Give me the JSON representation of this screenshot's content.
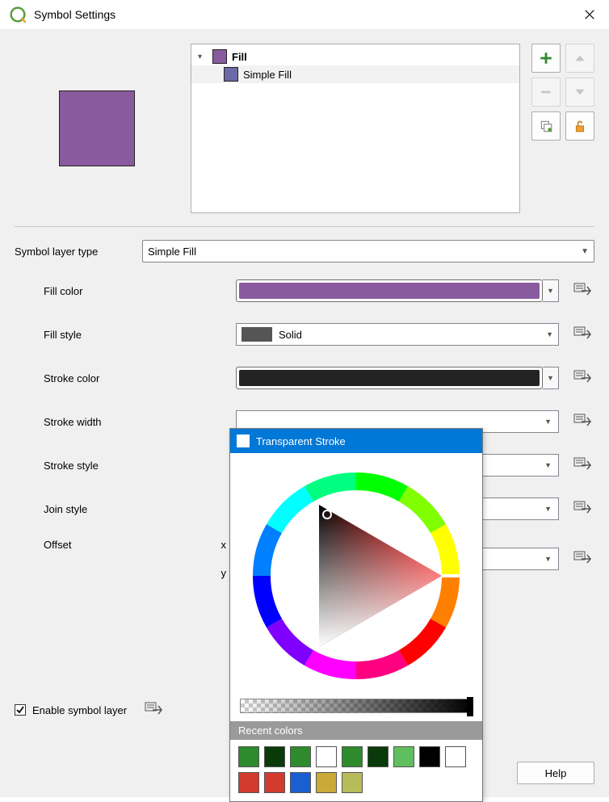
{
  "window": {
    "title": "Symbol Settings",
    "background": "#f0f0f0"
  },
  "preview": {
    "fill_color": "#8a5a9e",
    "stroke_color": "#232323"
  },
  "layer_tree": {
    "root_label": "Fill",
    "root_swatch": "#8a5a9e",
    "child_label": "Simple Fill",
    "child_swatch": "#6a6aa8"
  },
  "form": {
    "symbol_layer_type_label": "Symbol layer type",
    "symbol_layer_type_value": "Simple Fill",
    "fill_color_label": "Fill color",
    "fill_color_value": "#8a5a9e",
    "fill_style_label": "Fill style",
    "fill_style_value": "Solid",
    "fill_style_swatch": "#555555",
    "stroke_color_label": "Stroke color",
    "stroke_color_value": "#232323",
    "stroke_width_label": "Stroke width",
    "stroke_style_label": "Stroke style",
    "join_style_label": "Join style",
    "offset_label": "Offset",
    "offset_x_label": "x",
    "offset_y_label": "y",
    "enable_label": "Enable symbol layer",
    "enable_checked": true,
    "help_label": "Help"
  },
  "color_popup": {
    "header_label": "Transparent Stroke",
    "header_bg": "#0078d7",
    "recent_header": "Recent colors",
    "recent_colors": [
      "#2d8a2d",
      "#0a3a0a",
      "#2d8a2d",
      "#ffffff",
      "#2d8a2d",
      "#0a3a0a",
      "#5fbf5f",
      "#000000",
      "#ffffff",
      "#d23b2d",
      "#d23b2d",
      "#1a5fd2",
      "#caa93a",
      "#b8bb5a"
    ]
  }
}
